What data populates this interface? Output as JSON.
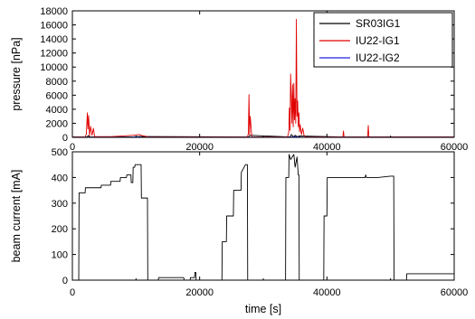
{
  "chart_data": [
    {
      "type": "line",
      "title": "",
      "xlabel": "",
      "ylabel": "pressure [nPa]",
      "xlim": [
        0,
        60000
      ],
      "ylim": [
        0,
        18000
      ],
      "x_ticks": [
        0,
        20000,
        40000,
        60000
      ],
      "y_ticks": [
        0,
        2000,
        4000,
        6000,
        8000,
        10000,
        12000,
        14000,
        16000,
        18000
      ],
      "grid": false,
      "legend": "top-right",
      "series": [
        {
          "name": "SR03IG1",
          "color": "#000000",
          "x": [
            0,
            2300,
            2500,
            2700,
            9500,
            10500,
            27700,
            27900,
            34200,
            34400,
            34800,
            35000,
            35400,
            35600,
            42500,
            46500,
            60000
          ],
          "y": [
            60,
            60,
            250,
            60,
            60,
            120,
            60,
            300,
            60,
            400,
            60,
            300,
            60,
            200,
            60,
            60,
            60
          ]
        },
        {
          "name": "IU22-IG1",
          "color": "#e00000",
          "x": [
            0,
            2000,
            2200,
            2350,
            2450,
            2550,
            2700,
            2850,
            3100,
            3300,
            3500,
            6000,
            8000,
            9500,
            10500,
            11000,
            12000,
            27500,
            27650,
            27750,
            27850,
            27950,
            28200,
            33800,
            34000,
            34100,
            34200,
            34300,
            34500,
            34600,
            34700,
            34800,
            34900,
            35000,
            35100,
            35200,
            35300,
            35400,
            35500,
            35600,
            35700,
            35800,
            36000,
            36200,
            36400,
            36600,
            42500,
            42600,
            42700,
            46400,
            46500,
            46600,
            50000,
            60000
          ],
          "y": [
            50,
            50,
            500,
            3500,
            1200,
            3100,
            200,
            1600,
            300,
            1300,
            100,
            100,
            200,
            300,
            400,
            250,
            50,
            50,
            500,
            6100,
            400,
            3000,
            50,
            50,
            700,
            4200,
            1000,
            9000,
            2000,
            7500,
            1500,
            7700,
            2500,
            5500,
            2000,
            16800,
            3000,
            5200,
            1500,
            3500,
            800,
            1800,
            400,
            1300,
            300,
            50,
            50,
            900,
            50,
            50,
            1700,
            50,
            50,
            50
          ]
        },
        {
          "name": "IU22-IG2",
          "color": "#2222dd",
          "x": [
            0,
            9000,
            10000,
            11000,
            34000,
            35000,
            36000,
            60000
          ],
          "y": [
            20,
            20,
            80,
            20,
            20,
            100,
            20,
            20
          ]
        }
      ]
    },
    {
      "type": "line",
      "title": "",
      "xlabel": "time [s]",
      "ylabel": "beam current [mA]",
      "xlim": [
        0,
        60000
      ],
      "ylim": [
        0,
        500
      ],
      "x_ticks": [
        0,
        20000,
        40000,
        60000
      ],
      "y_ticks": [
        0,
        100,
        200,
        300,
        400,
        500
      ],
      "grid": false,
      "legend": "none",
      "series": [
        {
          "name": "",
          "color": "#000000",
          "x": [
            0,
            1000,
            1050,
            2000,
            2050,
            4500,
            4550,
            6000,
            6050,
            7500,
            7550,
            8500,
            8550,
            9200,
            9250,
            9500,
            9550,
            9800,
            9850,
            10400,
            10800,
            10850,
            11800,
            11850,
            13500,
            13550,
            17500,
            17550,
            18500,
            18550,
            19200,
            19250,
            19400,
            19450,
            23500,
            23550,
            24200,
            24250,
            25300,
            25350,
            26500,
            26550,
            27200,
            27500,
            27550,
            27700,
            27750,
            27900,
            33500,
            33550,
            34000,
            34050,
            34300,
            34800,
            35000,
            35300,
            35500,
            35600,
            35650,
            39500,
            39550,
            40000,
            40050,
            46000,
            46100,
            46200,
            48000,
            50000,
            50500,
            50550,
            52500,
            52550,
            60000
          ],
          "y": [
            0,
            0,
            340,
            340,
            360,
            360,
            370,
            370,
            385,
            385,
            400,
            400,
            410,
            410,
            380,
            380,
            440,
            440,
            450,
            450,
            450,
            320,
            320,
            0,
            0,
            10,
            10,
            0,
            0,
            10,
            10,
            30,
            30,
            0,
            0,
            150,
            150,
            250,
            250,
            350,
            350,
            420,
            450,
            450,
            0,
            0,
            0,
            0,
            0,
            400,
            400,
            490,
            470,
            490,
            440,
            480,
            410,
            410,
            0,
            0,
            250,
            250,
            400,
            400,
            410,
            400,
            400,
            405,
            405,
            0,
            0,
            25,
            25
          ]
        }
      ]
    }
  ]
}
